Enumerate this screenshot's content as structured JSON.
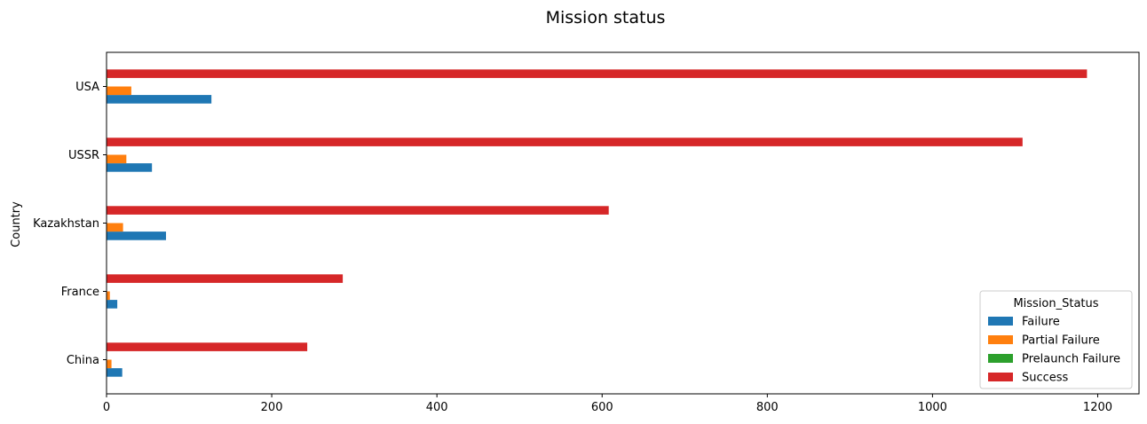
{
  "chart_data": {
    "type": "bar",
    "orientation": "horizontal",
    "title": "Mission status",
    "xlabel": "",
    "ylabel": "Country",
    "xlim": [
      0,
      1250
    ],
    "xticks": [
      0,
      200,
      400,
      600,
      800,
      1000,
      1200
    ],
    "categories": [
      "China",
      "France",
      "Kazakhstan",
      "USSR",
      "USA"
    ],
    "legend_title": "Mission_Status",
    "legend_position": "lower-right",
    "grid": false,
    "series": [
      {
        "name": "Failure",
        "color": "#1f77b4",
        "values": [
          19,
          13,
          72,
          55,
          127
        ]
      },
      {
        "name": "Partial Failure",
        "color": "#ff7f0e",
        "values": [
          6,
          4,
          20,
          24,
          30
        ]
      },
      {
        "name": "Prelaunch Failure",
        "color": "#2ca02c",
        "values": [
          0,
          0,
          0,
          0,
          1
        ]
      },
      {
        "name": "Success",
        "color": "#d62728",
        "values": [
          243,
          286,
          608,
          1109,
          1187
        ]
      }
    ]
  }
}
